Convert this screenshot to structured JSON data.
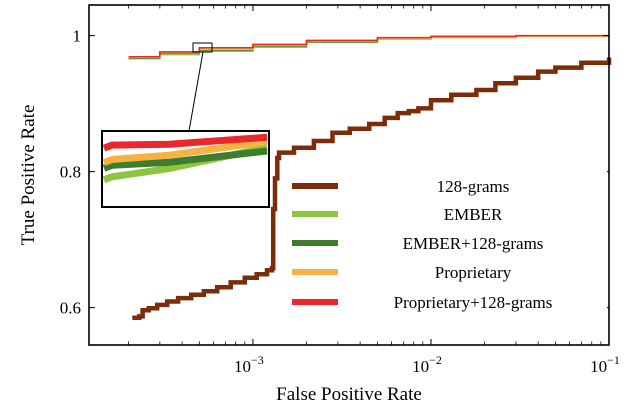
{
  "chart_data": {
    "type": "line",
    "xlabel": "False Positive Rate",
    "ylabel": "True Positive Rate",
    "xscale": "log",
    "xlim": [
      0.00012,
      0.1
    ],
    "ylim": [
      0.545,
      1.045
    ],
    "legend_position": "center-right",
    "grid": false,
    "x_ticks": [
      {
        "value": 0.001,
        "base": "10",
        "exp": "−3"
      },
      {
        "value": 0.01,
        "base": "10",
        "exp": "−2"
      },
      {
        "value": 0.1,
        "base": "10",
        "exp": "−1"
      }
    ],
    "y_ticks": [
      {
        "value": 0.6,
        "label": "0.6"
      },
      {
        "value": 0.8,
        "label": "0.8"
      },
      {
        "value": 1.0,
        "label": "1"
      }
    ],
    "series": [
      {
        "name": "128-grams",
        "color": "#7b2d0a",
        "points": [
          [
            0.00021,
            0.585
          ],
          [
            0.00023,
            0.587
          ],
          [
            0.00024,
            0.596
          ],
          [
            0.00026,
            0.599
          ],
          [
            0.00029,
            0.604
          ],
          [
            0.00033,
            0.609
          ],
          [
            0.00038,
            0.614
          ],
          [
            0.00045,
            0.619
          ],
          [
            0.00053,
            0.624
          ],
          [
            0.00063,
            0.63
          ],
          [
            0.00075,
            0.637
          ],
          [
            0.0009,
            0.644
          ],
          [
            0.00105,
            0.649
          ],
          [
            0.0012,
            0.655
          ],
          [
            0.00128,
            0.658
          ],
          [
            0.0013,
            0.745
          ],
          [
            0.00133,
            0.79
          ],
          [
            0.00137,
            0.82
          ],
          [
            0.0014,
            0.828
          ],
          [
            0.0017,
            0.835
          ],
          [
            0.0022,
            0.845
          ],
          [
            0.0028,
            0.857
          ],
          [
            0.0035,
            0.863
          ],
          [
            0.0045,
            0.87
          ],
          [
            0.0055,
            0.879
          ],
          [
            0.0065,
            0.886
          ],
          [
            0.0075,
            0.889
          ],
          [
            0.0085,
            0.893
          ],
          [
            0.01,
            0.905
          ],
          [
            0.013,
            0.913
          ],
          [
            0.018,
            0.92
          ],
          [
            0.023,
            0.93
          ],
          [
            0.03,
            0.938
          ],
          [
            0.04,
            0.947
          ],
          [
            0.05,
            0.953
          ],
          [
            0.07,
            0.96
          ],
          [
            0.1,
            0.968
          ]
        ]
      },
      {
        "name": "EMBER",
        "color": "#8cc63f",
        "points": [
          [
            0.0002,
            0.966
          ],
          [
            0.0003,
            0.972
          ],
          [
            0.0005,
            0.977
          ],
          [
            0.001,
            0.983
          ],
          [
            0.002,
            0.99
          ],
          [
            0.005,
            0.995
          ],
          [
            0.01,
            0.997
          ],
          [
            0.03,
            0.999
          ],
          [
            0.1,
            1.0
          ]
        ]
      },
      {
        "name": "EMBER+128-grams",
        "color": "#3e7d2e",
        "points": [
          [
            0.0002,
            0.967
          ],
          [
            0.0003,
            0.974
          ],
          [
            0.0005,
            0.979
          ],
          [
            0.001,
            0.985
          ],
          [
            0.002,
            0.991
          ],
          [
            0.005,
            0.996
          ],
          [
            0.01,
            0.998
          ],
          [
            0.03,
            0.999
          ],
          [
            0.1,
            1.0
          ]
        ]
      },
      {
        "name": "Proprietary",
        "color": "#f5b342",
        "points": [
          [
            0.0002,
            0.968
          ],
          [
            0.0003,
            0.975
          ],
          [
            0.0005,
            0.98
          ],
          [
            0.001,
            0.986
          ],
          [
            0.002,
            0.992
          ],
          [
            0.005,
            0.996
          ],
          [
            0.01,
            0.998
          ],
          [
            0.03,
            0.999
          ],
          [
            0.1,
            1.0
          ]
        ]
      },
      {
        "name": "Proprietary+128-grams",
        "color": "#e8282a",
        "points": [
          [
            0.0002,
            0.969
          ],
          [
            0.0003,
            0.976
          ],
          [
            0.0005,
            0.982
          ],
          [
            0.001,
            0.987
          ],
          [
            0.002,
            0.993
          ],
          [
            0.005,
            0.997
          ],
          [
            0.01,
            0.999
          ],
          [
            0.03,
            1.0
          ],
          [
            0.1,
            1.0
          ]
        ]
      }
    ],
    "inset": {
      "series_levels": [
        {
          "series": "EMBER",
          "start": 0.35,
          "end": 0.8
        },
        {
          "series": "EMBER+128-grams",
          "start": 0.51,
          "end": 0.75
        },
        {
          "series": "Proprietary",
          "start": 0.59,
          "end": 0.88
        },
        {
          "series": "Proprietary+128-grams",
          "start": 0.79,
          "end": 0.94
        }
      ]
    }
  }
}
